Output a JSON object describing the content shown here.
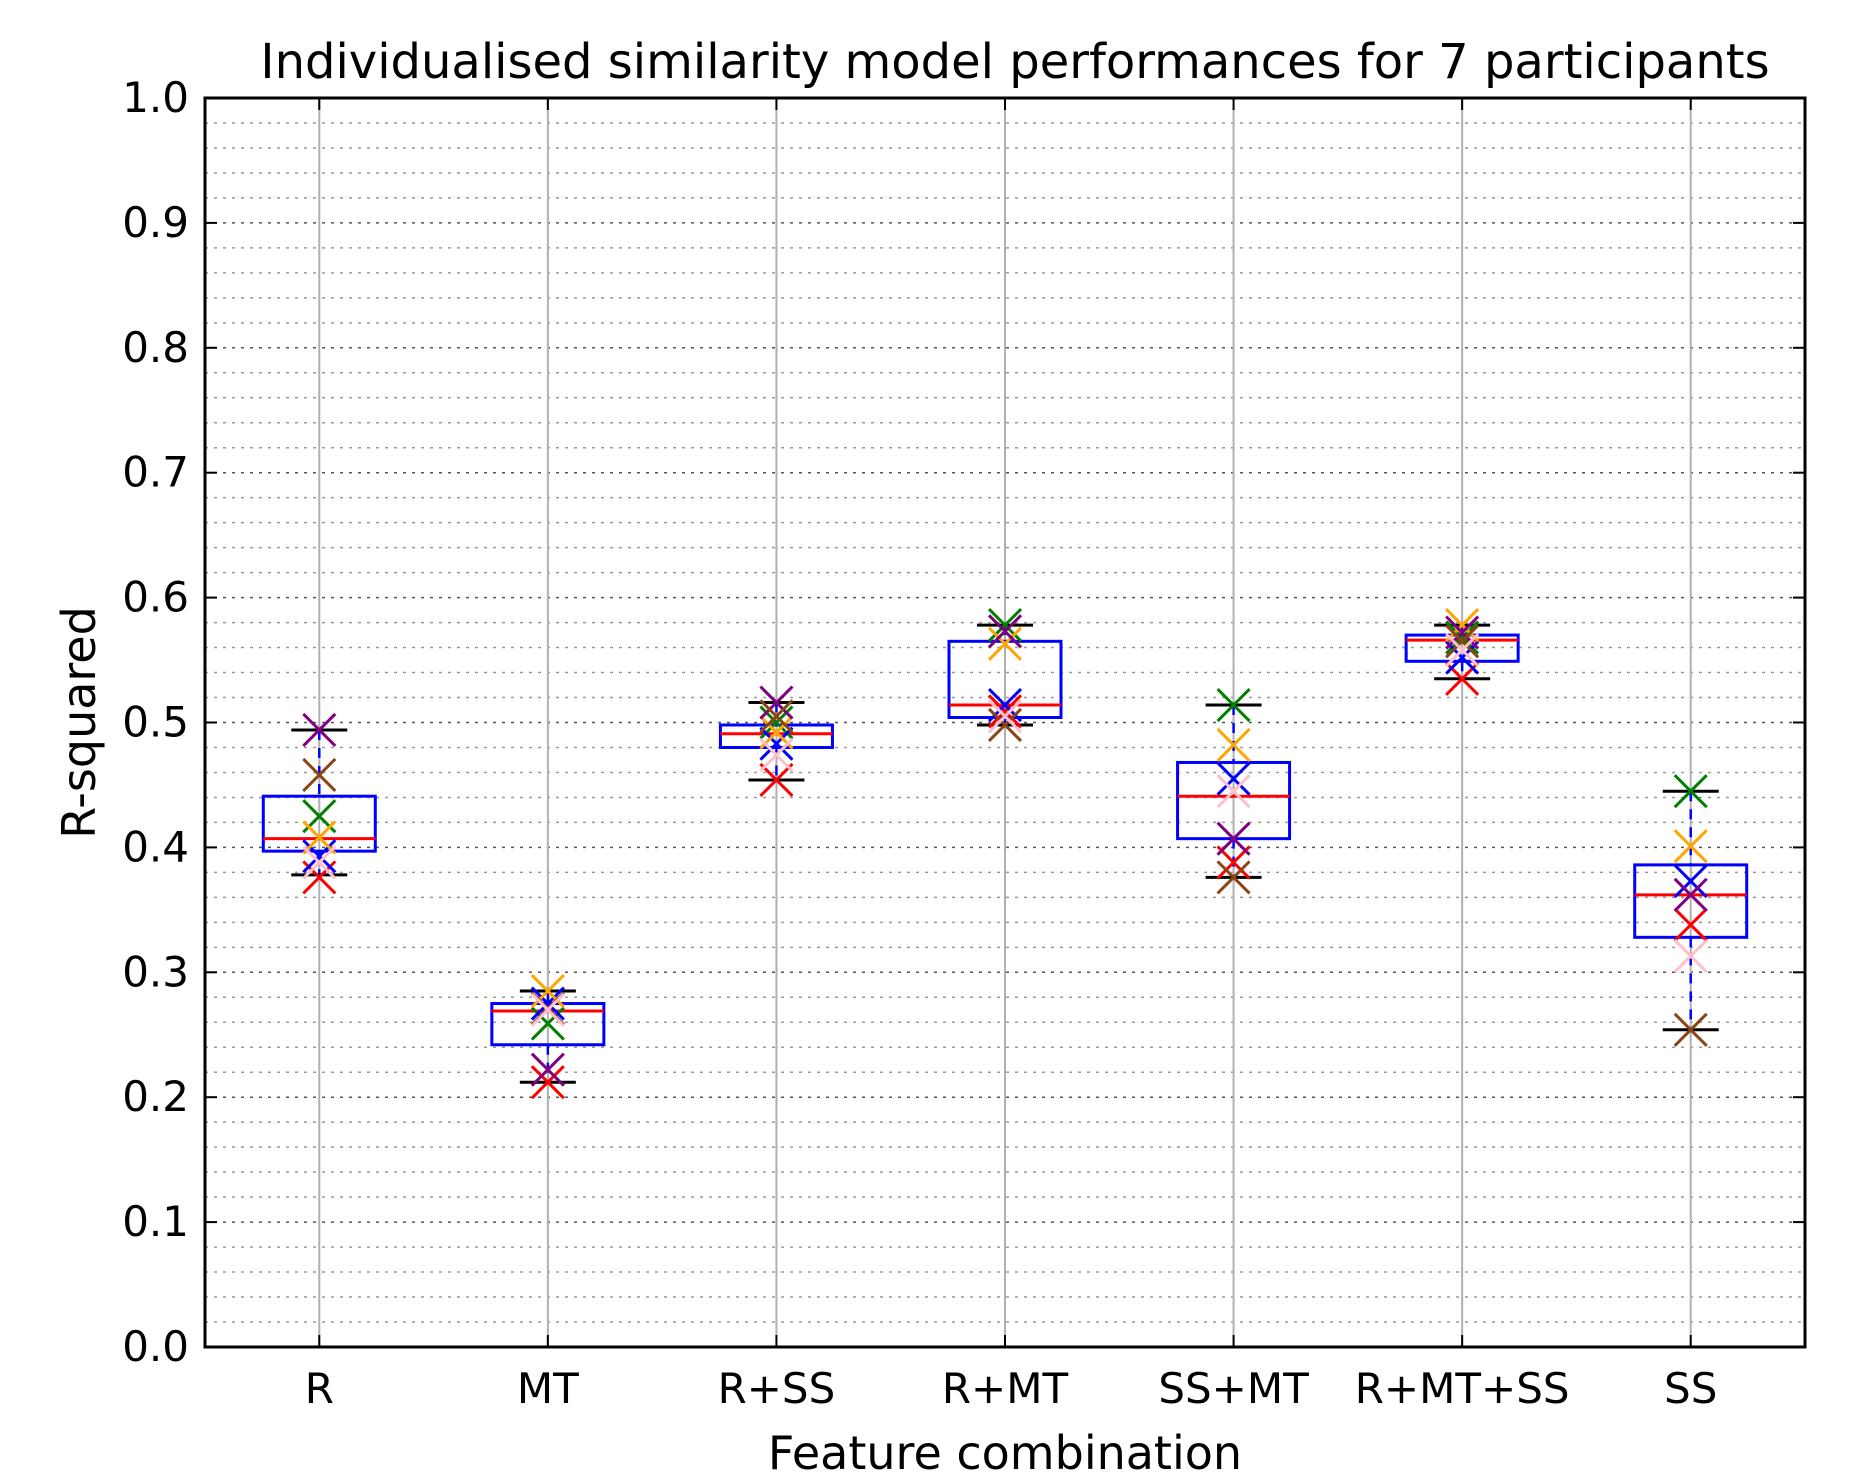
{
  "chart_data": {
    "type": "box",
    "title": "Individualised similarity model performances for 7 participants",
    "xlabel": "Feature combination",
    "ylabel": "R-squared",
    "ylim": [
      0.0,
      1.0
    ],
    "yticks": [
      "0.0",
      "0.1",
      "0.2",
      "0.3",
      "0.4",
      "0.5",
      "0.6",
      "0.7",
      "0.8",
      "0.9",
      "1.0"
    ],
    "grid": {
      "major": true,
      "minor": true,
      "vertical": true
    },
    "categories": [
      "R",
      "MT",
      "R+SS",
      "R+MT",
      "SS+MT",
      "R+MT+SS",
      "SS"
    ],
    "boxes": [
      {
        "whisker_low": 0.378,
        "q1": 0.397,
        "median": 0.407,
        "q3": 0.441,
        "whisker_high": 0.494
      },
      {
        "whisker_low": 0.212,
        "q1": 0.242,
        "median": 0.269,
        "q3": 0.275,
        "whisker_high": 0.285
      },
      {
        "whisker_low": 0.454,
        "q1": 0.48,
        "median": 0.491,
        "q3": 0.498,
        "whisker_high": 0.516
      },
      {
        "whisker_low": 0.498,
        "q1": 0.504,
        "median": 0.514,
        "q3": 0.565,
        "whisker_high": 0.578
      },
      {
        "whisker_low": 0.376,
        "q1": 0.407,
        "median": 0.441,
        "q3": 0.468,
        "whisker_high": 0.514
      },
      {
        "whisker_low": 0.535,
        "q1": 0.549,
        "median": 0.566,
        "q3": 0.57,
        "whisker_high": 0.578
      },
      {
        "whisker_low": 0.254,
        "q1": 0.328,
        "median": 0.362,
        "q3": 0.386,
        "whisker_high": 0.445
      }
    ],
    "participants": [
      {
        "color": "#ff0000",
        "values": [
          0.376,
          0.212,
          0.454,
          0.509,
          0.388,
          0.535,
          0.338
        ]
      },
      {
        "color": "#008000",
        "values": [
          0.425,
          0.259,
          0.5,
          0.578,
          0.514,
          0.568,
          0.445
        ]
      },
      {
        "color": "#0000ff",
        "values": [
          0.393,
          0.275,
          0.483,
          0.514,
          0.455,
          0.552,
          0.373
        ]
      },
      {
        "color": "#ffa500",
        "values": [
          0.408,
          0.285,
          0.492,
          0.563,
          0.482,
          0.578,
          0.401
        ]
      },
      {
        "color": "#800080",
        "values": [
          0.494,
          0.222,
          0.516,
          0.573,
          0.407,
          0.572,
          0.362
        ]
      },
      {
        "color": "#8b4513",
        "values": [
          0.458,
          0.271,
          0.505,
          0.498,
          0.376,
          0.565,
          0.254
        ]
      },
      {
        "color": "#ffc0cb",
        "values": [
          0.388,
          0.27,
          0.474,
          0.505,
          0.445,
          0.558,
          0.313
        ]
      }
    ],
    "colors": {
      "box": "#0000ff",
      "median": "#ff0000",
      "whisker_cap": "#000000"
    }
  }
}
